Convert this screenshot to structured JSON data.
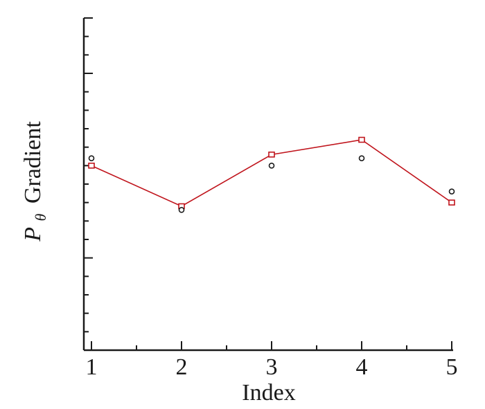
{
  "chart_data": {
    "type": "scatter",
    "xlabel": "Index",
    "ylabel_symbol": "P",
    "ylabel_subscript": "θ",
    "ylabel_text": "Gradient",
    "x_ticks": [
      "1",
      "2",
      "3",
      "4",
      "5"
    ],
    "xlim": [
      1,
      5
    ],
    "ylim": [
      0,
      9
    ],
    "y_major_ticks": [
      0,
      2.5,
      5,
      7.5,
      9
    ],
    "y_tick_labels_shown": false,
    "grid": false,
    "series": [
      {
        "style": "line-square",
        "color": "#c0141c",
        "x": [
          1,
          2,
          3,
          4,
          5
        ],
        "y": [
          5.0,
          3.9,
          5.3,
          5.7,
          4.0
        ]
      },
      {
        "style": "circle",
        "color": "#1a1a1a",
        "x": [
          1,
          2,
          3,
          4,
          5
        ],
        "y": [
          5.2,
          3.8,
          5.0,
          5.2,
          4.3
        ]
      }
    ]
  }
}
